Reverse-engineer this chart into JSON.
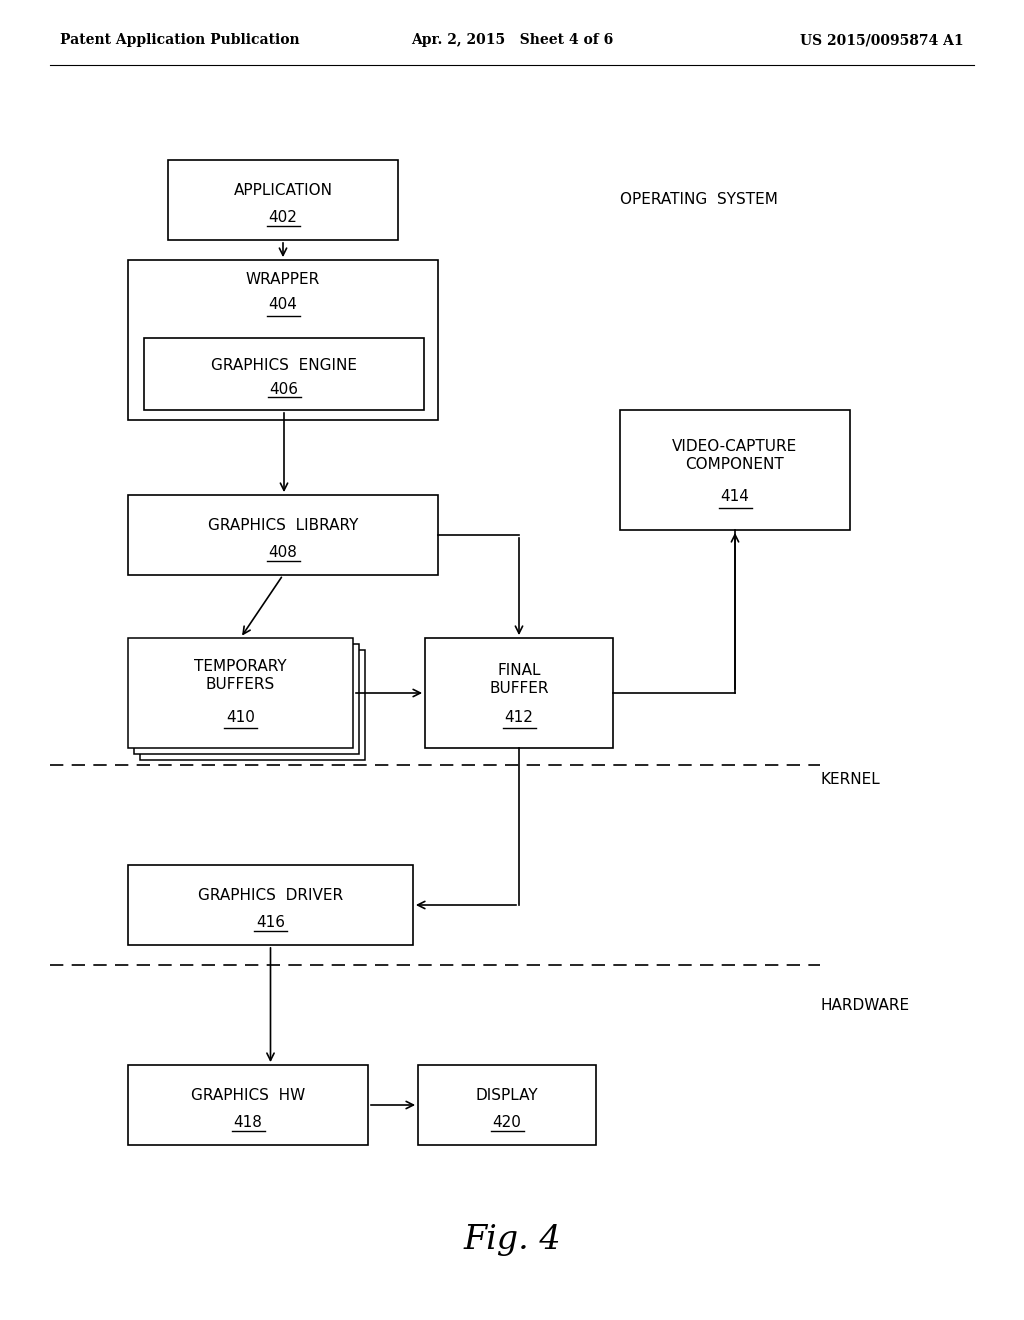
{
  "bg_color": "#ffffff",
  "header_left": "Patent Application Publication",
  "header_mid": "Apr. 2, 2015   Sheet 4 of 6",
  "header_right": "US 2015/0095874 A1",
  "caption": "Fig. 4",
  "os_label": "OPERATING  SYSTEM",
  "kernel_label": "KERNEL",
  "hardware_label": "HARDWARE",
  "font_size_box": 11,
  "font_size_label": 11,
  "font_size_header": 10,
  "font_size_caption": 24,
  "font_size_ref": 11
}
